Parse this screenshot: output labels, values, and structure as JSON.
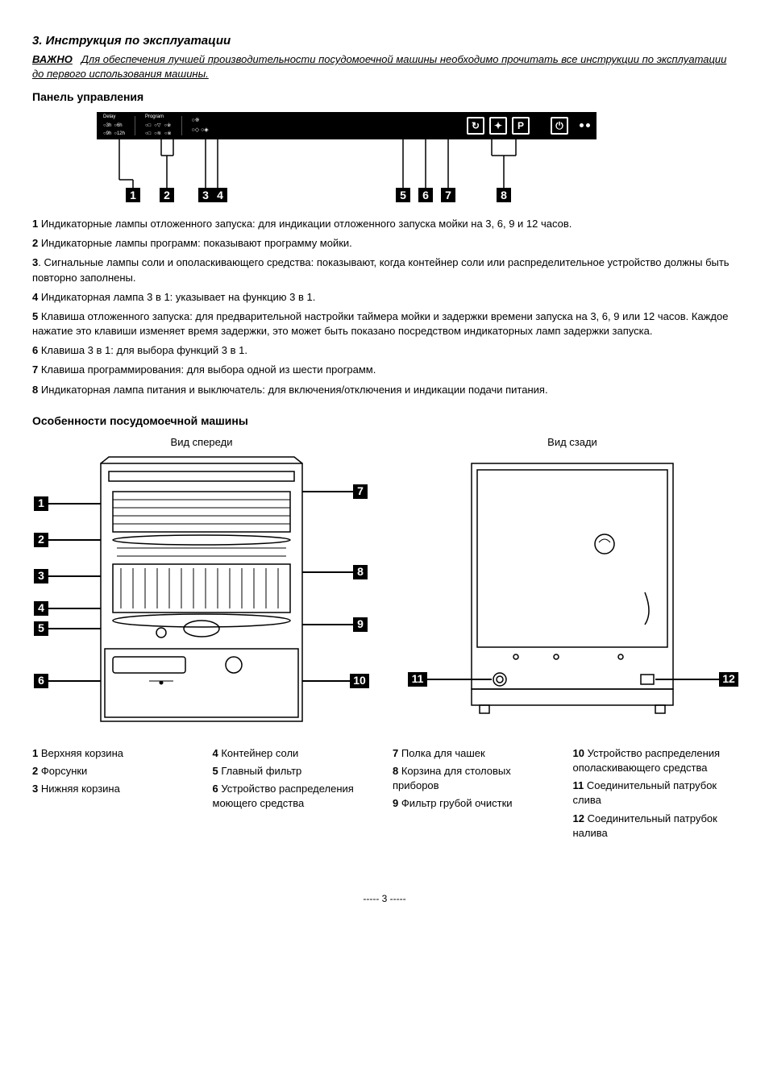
{
  "section_title": "3. Инструкция по эксплуатации",
  "important_label": "ВАЖНО",
  "important_text": "Для обеспечения лучшей производительности посудомоечной машины необходимо прочитать все инструкции по эксплуатации до первого использования машины.",
  "panel_title": "Панель управления",
  "panel_buttons": [
    "↻",
    "✦",
    "P",
    "⏻"
  ],
  "panel_labels_top": [
    "Delay",
    "Program"
  ],
  "panel_small_marks": [
    "3h",
    "6h",
    "9h",
    "12h"
  ],
  "panel_callouts": [
    "1",
    "2",
    "3",
    "4",
    "5",
    "6",
    "7",
    "8"
  ],
  "panel_desc": [
    {
      "n": "1",
      "t": " Индикаторные лампы отложенного запуска: для индикации отложенного запуска мойки на 3, 6, 9 и 12 часов."
    },
    {
      "n": "2",
      "t": " Индикаторные лампы программ: показывают программу мойки."
    },
    {
      "n": "3",
      "t": ". Сигнальные лампы соли и ополаскивающего средства: показывают, когда контейнер соли или распределительное устройство должны быть повторно заполнены."
    },
    {
      "n": "4",
      "t": " Индикаторная лампа 3 в 1: указывает на функцию 3 в 1."
    },
    {
      "n": "5",
      "t": " Клавиша отложенного запуска: для предварительной настройки таймера мойки и задержки времени запуска на 3, 6, 9 или 12 часов. Каждое нажатие это клавиши изменяет время задержки, это может быть показано посредством индикаторных ламп задержки запуска."
    },
    {
      "n": "6",
      "t": " Клавиша 3 в 1: для выбора функций 3 в 1."
    },
    {
      "n": "7",
      "t": " Клавиша программирования: для выбора одной из шести программ."
    },
    {
      "n": "8",
      "t": " Индикаторная лампа питания и выключатель: для включения/отключения и индикации подачи питания."
    }
  ],
  "features_title": "Особенности посудомоечной машины",
  "front_caption": "Вид спереди",
  "back_caption": "Вид сзади",
  "front_labels_left": [
    "1",
    "2",
    "3",
    "4",
    "5",
    "6"
  ],
  "front_labels_right": [
    "7",
    "8",
    "9",
    "10"
  ],
  "back_labels": [
    "11",
    "12"
  ],
  "legend": [
    [
      {
        "n": "1",
        "t": " Верхняя корзина"
      },
      {
        "n": "2",
        "t": " Форсунки"
      },
      {
        "n": "3",
        "t": " Нижняя корзина"
      }
    ],
    [
      {
        "n": "4",
        "t": " Контейнер соли"
      },
      {
        "n": "5",
        "t": " Главный фильтр"
      },
      {
        "n": "6",
        "t": " Устройство распределения моющего средства"
      }
    ],
    [
      {
        "n": "7",
        "t": " Полка для чашек"
      },
      {
        "n": "8",
        "t": " Корзина для столовых приборов"
      },
      {
        "n": "9",
        "t": " Фильтр грубой очистки"
      }
    ],
    [
      {
        "n": "10",
        "t": " Устройство распределения ополаскивающего средства"
      },
      {
        "n": "11",
        "t": " Соединительный патрубок слива"
      },
      {
        "n": "12",
        "t": " Соединительный патрубок налива"
      }
    ]
  ],
  "page_number": "----- 3 -----",
  "colors": {
    "black": "#000000",
    "white": "#ffffff",
    "gray": "#888888"
  }
}
